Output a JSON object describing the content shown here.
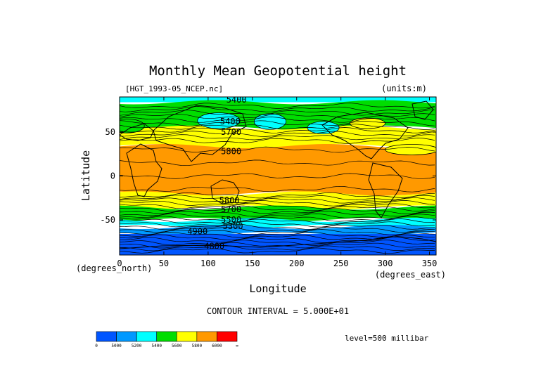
{
  "chart_data": {
    "type": "heatmap",
    "title": "Monthly Mean Geopotential height",
    "file_label": "[HGT_1993-05_NCEP.nc]",
    "units_label": "(units:m)",
    "xlabel": "Longitude",
    "ylabel": "Latitude",
    "x_units": "(degrees_east)",
    "y_units": "(degrees_north)",
    "xlim": [
      0,
      357.5
    ],
    "ylim": [
      -90,
      90
    ],
    "x_ticks": [
      "0",
      "50",
      "100",
      "150",
      "200",
      "250",
      "300",
      "350"
    ],
    "y_ticks": [
      "50",
      "0",
      "-50"
    ],
    "contour_interval_text": "CONTOUR INTERVAL = 5.000E+01",
    "level_text": "level=500 millibar",
    "contour_labels": [
      {
        "text": "5400",
        "lon": 132,
        "lat": 87
      },
      {
        "text": "5400",
        "lon": 125,
        "lat": 62
      },
      {
        "text": "5700",
        "lon": 126,
        "lat": 50
      },
      {
        "text": "5800",
        "lon": 126,
        "lat": 28
      },
      {
        "text": "5800",
        "lon": 124,
        "lat": -28
      },
      {
        "text": "5700",
        "lon": 126,
        "lat": -38
      },
      {
        "text": "5500",
        "lon": 126,
        "lat": -50
      },
      {
        "text": "5300",
        "lon": 128,
        "lat": -57
      },
      {
        "text": "4900",
        "lon": 88,
        "lat": -63
      },
      {
        "text": "4800",
        "lon": 107,
        "lat": -80
      }
    ],
    "color_bins": [
      {
        "lower": "0",
        "color": "#0055ff"
      },
      {
        "lower": "5000",
        "color": "#0099ff"
      },
      {
        "lower": "5200",
        "color": "#00ffff"
      },
      {
        "lower": "5400",
        "color": "#00dd00"
      },
      {
        "lower": "5600",
        "color": "#ffff00"
      },
      {
        "lower": "5800",
        "color": "#ff9900"
      },
      {
        "lower": "6000",
        "color": "#ff0000"
      }
    ],
    "colorbar_end_label": "∞",
    "zonal_bands": [
      {
        "lat_top": 90,
        "lat_bottom": 84,
        "bin": "5200"
      },
      {
        "lat_top": 84,
        "lat_bottom": 55,
        "bin": "5400"
      },
      {
        "lat_top": 55,
        "lat_bottom": 34,
        "bin": "5600"
      },
      {
        "lat_top": 34,
        "lat_bottom": -20,
        "bin": "5800"
      },
      {
        "lat_top": -20,
        "lat_bottom": -36,
        "bin": "5600"
      },
      {
        "lat_top": -36,
        "lat_bottom": -50,
        "bin": "5400"
      },
      {
        "lat_top": -50,
        "lat_bottom": -58,
        "bin": "5200"
      },
      {
        "lat_top": -58,
        "lat_bottom": -66,
        "bin": "5000"
      },
      {
        "lat_top": -66,
        "lat_bottom": -90,
        "bin": "0"
      }
    ],
    "features": [
      {
        "bin": "5200",
        "lon": 112,
        "lat": 63,
        "rlon": 24,
        "rlat": 9
      },
      {
        "bin": "5200",
        "lon": 170,
        "lat": 62,
        "rlon": 18,
        "rlat": 9
      },
      {
        "bin": "5200",
        "lon": 230,
        "lat": 55,
        "rlon": 18,
        "rlat": 7
      },
      {
        "bin": "5600",
        "lon": 280,
        "lat": 60,
        "rlon": 20,
        "rlat": 6
      },
      {
        "bin": "5400",
        "lon": 8,
        "lat": 57,
        "rlon": 20,
        "rlat": 8
      },
      {
        "bin": "5600",
        "lon": 330,
        "lat": 30,
        "rlon": 30,
        "rlat": 6
      }
    ]
  }
}
